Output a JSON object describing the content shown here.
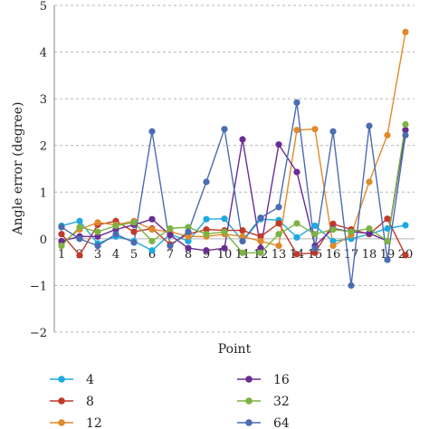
{
  "chart_data": {
    "type": "line",
    "xlabel": "Point",
    "ylabel": "Angle error (degree)",
    "x": [
      1,
      2,
      3,
      4,
      5,
      6,
      7,
      8,
      9,
      10,
      11,
      12,
      13,
      14,
      15,
      16,
      17,
      18,
      19,
      20
    ],
    "xtick_labels": [
      "1",
      "2",
      "3",
      "4",
      "5",
      "6",
      "7",
      "8",
      "9",
      "10",
      "11",
      "12",
      "13",
      "14",
      "15",
      "16",
      "17",
      "18",
      "19",
      "20"
    ],
    "ylim": [
      -2,
      5
    ],
    "yticks": [
      -2,
      -1,
      0,
      1,
      2,
      3,
      4,
      5
    ],
    "grid": "horizontal dashed",
    "legend_position": "bottom",
    "series": [
      {
        "name": "4",
        "color": "#1fa9e1",
        "values": [
          0.28,
          0.38,
          -0.1,
          0.05,
          -0.05,
          -0.25,
          0.1,
          -0.05,
          0.42,
          0.43,
          -0.05,
          0.42,
          0.4,
          0.03,
          0.28,
          -0.05,
          0.0,
          0.1,
          0.22,
          0.29
        ]
      },
      {
        "name": "8",
        "color": "#c0392b",
        "values": [
          0.1,
          -0.35,
          0.3,
          0.38,
          0.15,
          0.22,
          -0.12,
          0.1,
          0.2,
          0.18,
          0.18,
          0.05,
          0.33,
          -0.33,
          -0.3,
          0.32,
          0.2,
          0.1,
          0.43,
          -0.35
        ]
      },
      {
        "name": "12",
        "color": "#e08a2c",
        "values": [
          -0.1,
          0.2,
          0.35,
          0.3,
          0.38,
          0.2,
          0.15,
          0.05,
          0.05,
          0.1,
          0.05,
          -0.05,
          -0.15,
          2.33,
          2.35,
          -0.15,
          0.08,
          1.22,
          2.22,
          4.43
        ]
      },
      {
        "name": "16",
        "color": "#6a2c91",
        "values": [
          -0.05,
          0.05,
          0.05,
          0.2,
          0.3,
          0.42,
          0.08,
          -0.2,
          -0.25,
          -0.2,
          2.13,
          -0.2,
          2.02,
          1.43,
          -0.15,
          0.22,
          0.15,
          0.12,
          -0.05,
          2.33
        ]
      },
      {
        "name": "32",
        "color": "#7cb342",
        "values": [
          -0.15,
          0.25,
          0.15,
          0.28,
          0.35,
          -0.05,
          0.22,
          0.25,
          0.1,
          0.15,
          -0.3,
          -0.3,
          0.1,
          0.33,
          0.1,
          0.2,
          0.15,
          0.22,
          -0.05,
          2.45
        ]
      },
      {
        "name": "64",
        "color": "#4a6cb0",
        "values": [
          0.25,
          0.0,
          -0.15,
          0.1,
          -0.08,
          2.3,
          -0.15,
          0.15,
          1.22,
          2.35,
          -0.05,
          0.45,
          0.68,
          2.92,
          -0.2,
          2.3,
          -1.0,
          2.42,
          -0.45,
          2.22
        ]
      }
    ]
  }
}
